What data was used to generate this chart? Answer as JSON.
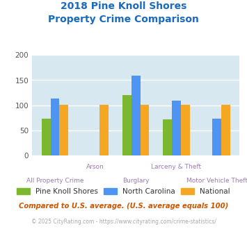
{
  "title_line1": "2018 Pine Knoll Shores",
  "title_line2": "Property Crime Comparison",
  "title_color": "#1a6abd",
  "categories": [
    "All Property Crime",
    "Arson",
    "Burglary",
    "Larceny & Theft",
    "Motor Vehicle Theft"
  ],
  "pks_vals": [
    73,
    0,
    120,
    72,
    0
  ],
  "nc_vals": [
    113,
    0,
    159,
    109,
    74
  ],
  "nat_vals": [
    101,
    101,
    101,
    101,
    101
  ],
  "colors": {
    "Pine Knoll Shores": "#7cb82f",
    "North Carolina": "#4d94f5",
    "National": "#f5a623"
  },
  "ylim": [
    0,
    200
  ],
  "yticks": [
    0,
    50,
    100,
    150,
    200
  ],
  "bar_width": 0.22,
  "plot_bg": "#d8e8f0",
  "grid_color": "#ffffff",
  "xlabel_color": "#9b7cb0",
  "legend_labels": [
    "Pine Knoll Shores",
    "North Carolina",
    "National"
  ],
  "footer_text": "Compared to U.S. average. (U.S. average equals 100)",
  "footer_color": "#cc5500",
  "copyright_text": "© 2025 CityRating.com - https://www.cityrating.com/crime-statistics/",
  "copyright_color": "#aaaaaa"
}
